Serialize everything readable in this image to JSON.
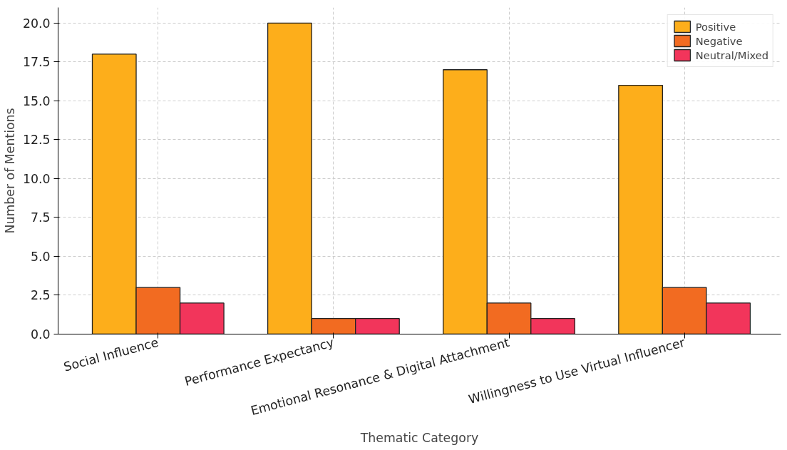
{
  "chart_data": {
    "type": "bar",
    "xlabel": "Thematic Category",
    "ylabel": "Number of Mentions",
    "categories": [
      "Social Influence",
      "Performance Expectancy",
      "Emotional Resonance & Digital Attachment",
      "Willingness to Use Virtual Influencer"
    ],
    "series": [
      {
        "name": "Positive",
        "color": "#fdae1b",
        "values": [
          18,
          20,
          17,
          16
        ]
      },
      {
        "name": "Negative",
        "color": "#f26b21",
        "values": [
          3,
          1,
          2,
          3
        ]
      },
      {
        "name": "Neutral/Mixed",
        "color": "#f2355b",
        "values": [
          2,
          1,
          1,
          2
        ]
      }
    ],
    "ylim": [
      0,
      21
    ],
    "yticks": [
      {
        "value": 0,
        "label": "0.0"
      },
      {
        "value": 2.5,
        "label": "2.5"
      },
      {
        "value": 5,
        "label": "5.0"
      },
      {
        "value": 7.5,
        "label": "7.5"
      },
      {
        "value": 10,
        "label": "10.0"
      },
      {
        "value": 12.5,
        "label": "12.5"
      },
      {
        "value": 15,
        "label": "15.0"
      },
      {
        "value": 17.5,
        "label": "17.5"
      },
      {
        "value": 20,
        "label": "20.0"
      }
    ],
    "grid": true,
    "legend": "top right"
  }
}
